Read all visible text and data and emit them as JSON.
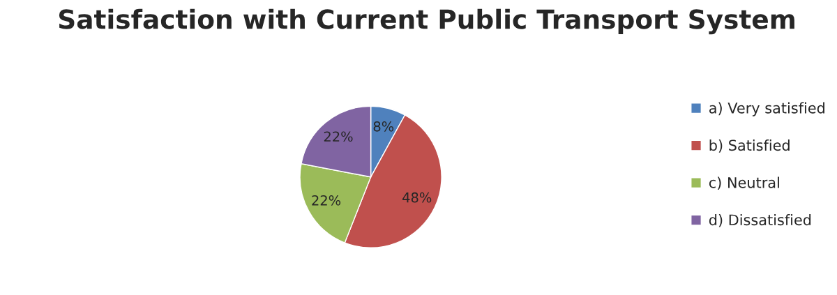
{
  "chart_data": {
    "type": "pie",
    "title": "Satisfaction with Current Public Transport System",
    "categories": [
      "a) Very satisfied",
      "b) Satisfied",
      "c) Neutral",
      "d) Dissatisfied"
    ],
    "values": [
      8,
      48,
      22,
      22
    ],
    "colors": [
      "#4f81bd",
      "#c0504d",
      "#9bbb59",
      "#8064a2"
    ],
    "value_labels": [
      "8%",
      "48%",
      "22%",
      "22%"
    ],
    "legend": "right"
  }
}
